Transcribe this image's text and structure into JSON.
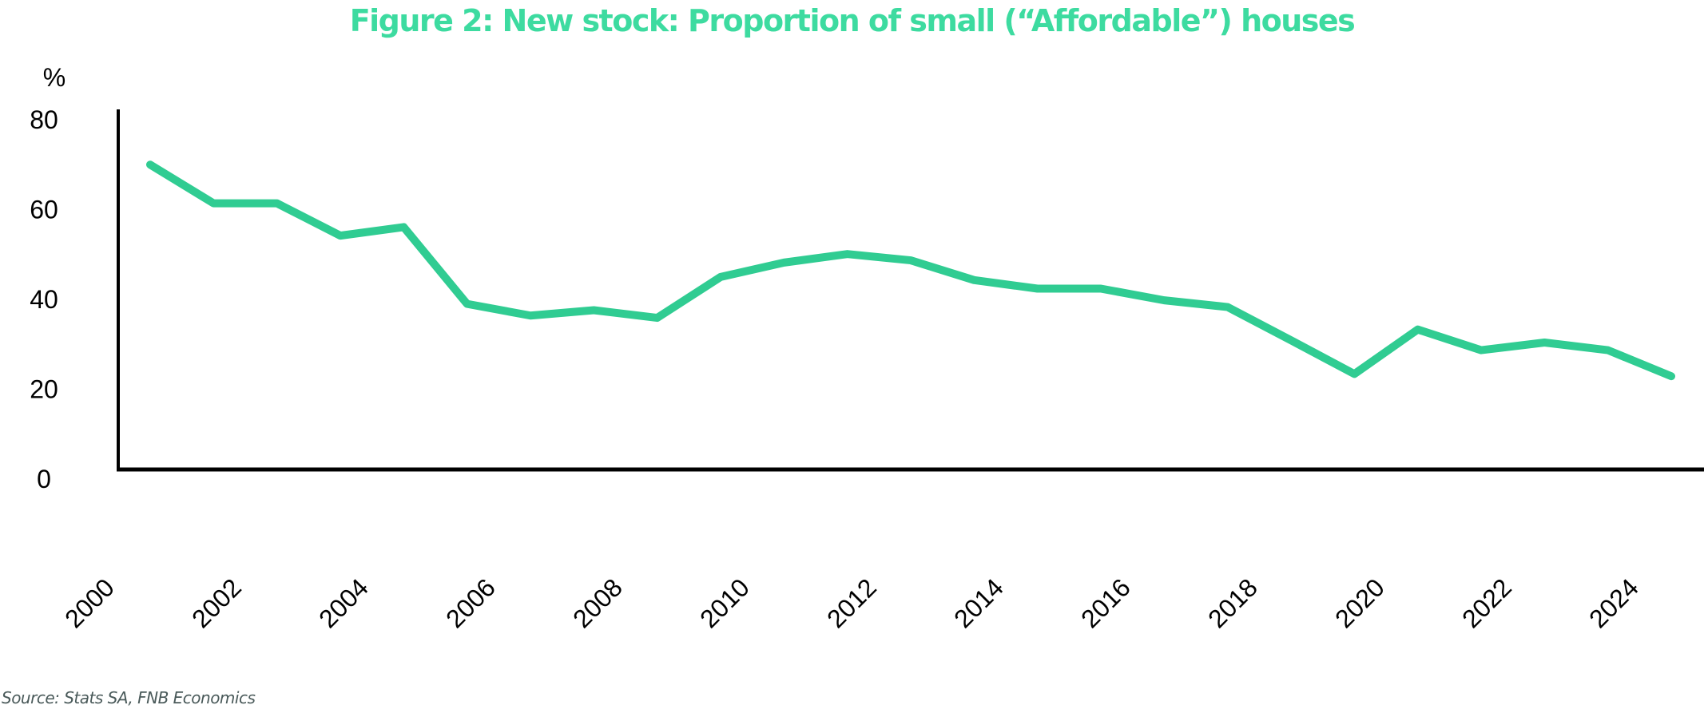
{
  "title": "Figure 2: New stock: Proportion of small (“Affordable”) houses",
  "source": "Source: Stats SA, FNB Economics",
  "colors": {
    "line": "#30cc92",
    "title": "#3ddba0",
    "axis": "#000000"
  },
  "chart_data": {
    "type": "line",
    "title": "Figure 2: New stock: Proportion of small (“Affordable”) houses",
    "xlabel": "",
    "ylabel": "%",
    "ylim": [
      0,
      80
    ],
    "yticks": [
      0,
      20,
      40,
      60,
      80
    ],
    "xlim": [
      2000,
      2025
    ],
    "xticks": [
      2000,
      2002,
      2004,
      2006,
      2008,
      2010,
      2012,
      2014,
      2016,
      2018,
      2020,
      2022,
      2024
    ],
    "grid": false,
    "legend": "none",
    "series": [
      {
        "name": "Proportion of small houses",
        "x": [
          2001,
          2002,
          2003,
          2004,
          2005,
          2006,
          2007,
          2008,
          2009,
          2010,
          2011,
          2012,
          2013,
          2014,
          2015,
          2016,
          2017,
          2018,
          2019,
          2020,
          2021,
          2022,
          2023,
          2024,
          2025
        ],
        "values": [
          70,
          61.4,
          61.4,
          54.2,
          56.1,
          39,
          36.4,
          37.6,
          35.9,
          45,
          48.2,
          50.1,
          48.7,
          44.3,
          42.4,
          42.4,
          39.8,
          38.3,
          30.9,
          23.4,
          33.3,
          28.7,
          30.4,
          28.7,
          22.9
        ]
      }
    ]
  }
}
